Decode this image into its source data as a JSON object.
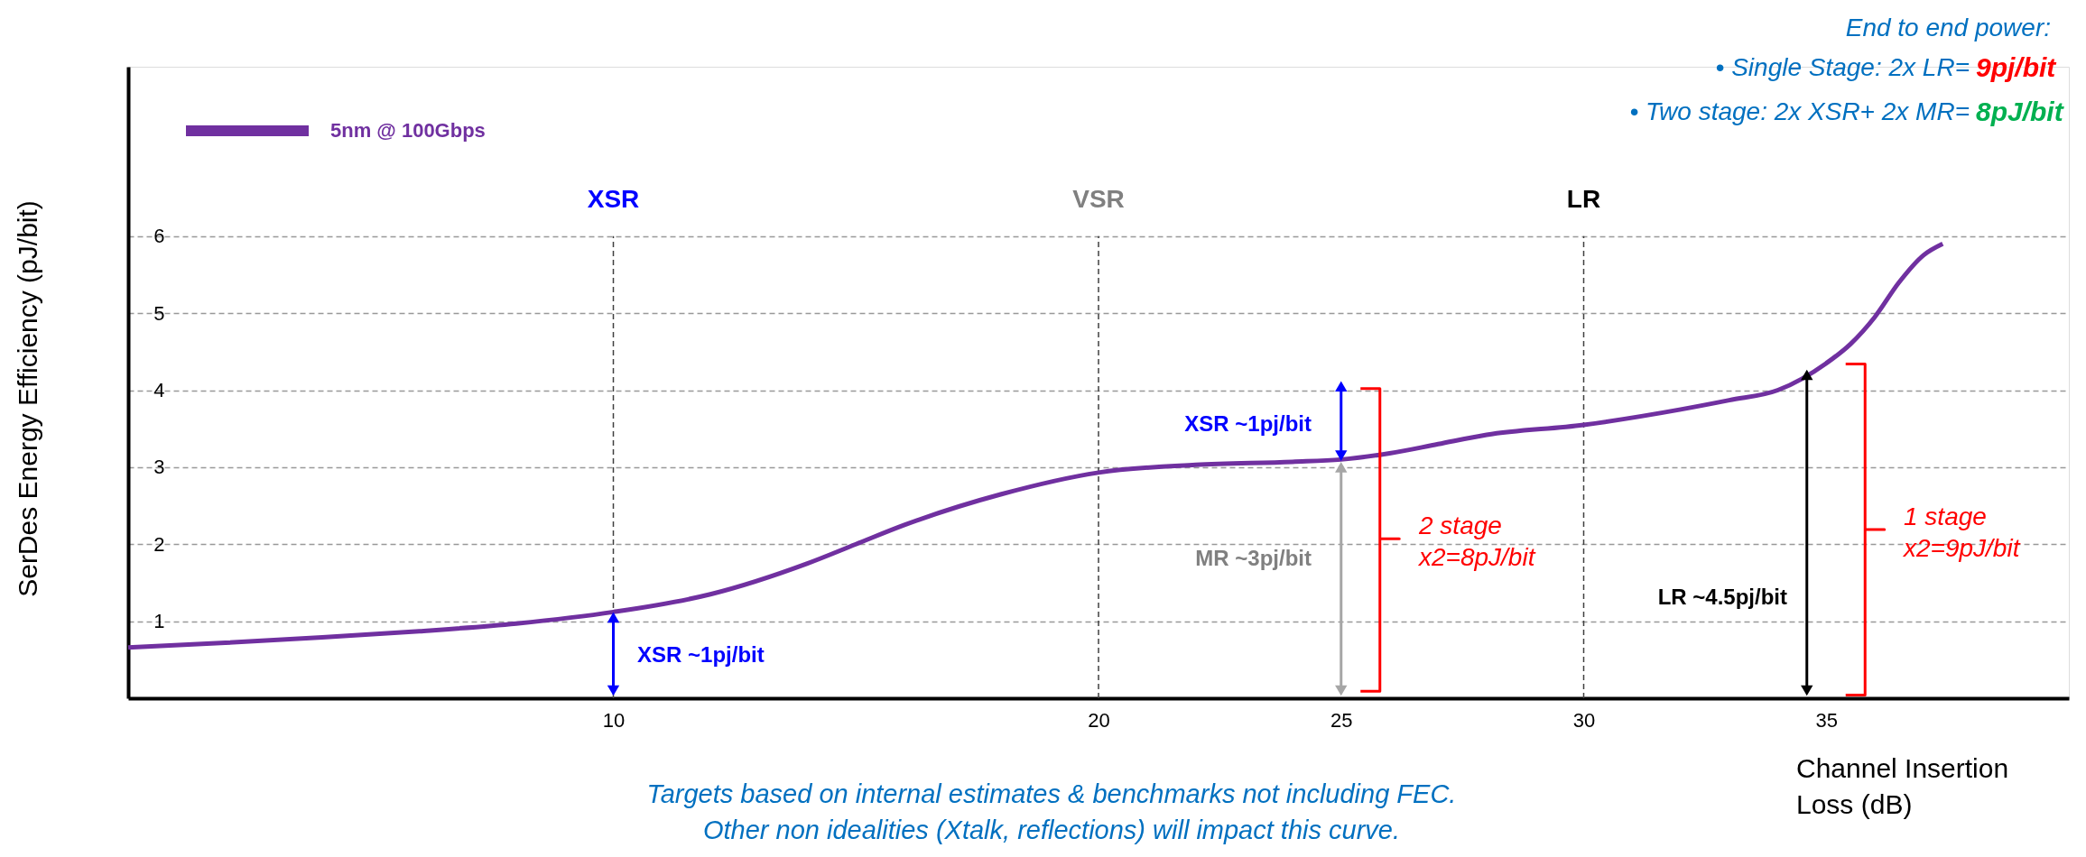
{
  "chart_data": {
    "type": "line",
    "ylabel": "SerDes Energy Efficiency  (pJ/bit)",
    "xlabel": "Channel Insertion\nLoss (dB)",
    "xlim": [
      0,
      40
    ],
    "ylim": [
      0,
      8.2
    ],
    "xticks": [
      10,
      20,
      25,
      30,
      35
    ],
    "yticks": [
      1,
      2,
      3,
      4,
      5,
      6
    ],
    "grid": "y",
    "legend": "top left",
    "series": [
      {
        "name": "5nm @ 100Gbps",
        "color": "#7030a0",
        "x": [
          0,
          2,
          4,
          6,
          8,
          10,
          12,
          14,
          15,
          16,
          18,
          20,
          22,
          24,
          25,
          26,
          27,
          28,
          30,
          32,
          33,
          34,
          35,
          35.5,
          36,
          36.5,
          37,
          37.4
        ],
        "values": [
          0.66,
          0.72,
          0.79,
          0.87,
          0.97,
          1.12,
          1.35,
          1.75,
          2.0,
          2.25,
          2.65,
          2.93,
          3.03,
          3.07,
          3.1,
          3.18,
          3.3,
          3.42,
          3.55,
          3.75,
          3.87,
          4.0,
          4.35,
          4.6,
          4.95,
          5.4,
          5.75,
          5.9
        ]
      },
      {
        "type": "line",
        "marker": "triangle",
        "color": "#0000ff",
        "x": [
          10,
          10
        ],
        "values": [
          0.1,
          1.05
        ]
      },
      {
        "type": "line",
        "marker": "triangle",
        "color": "#a6a6a6",
        "x": [
          25,
          25
        ],
        "values": [
          0.1,
          3.0
        ]
      },
      {
        "type": "line",
        "marker": "triangle",
        "color": "#0000ff",
        "x": [
          25,
          25
        ],
        "values": [
          3.15,
          4.05
        ]
      },
      {
        "type": "line",
        "marker": "triangle",
        "color": "#000000",
        "x": [
          34.6,
          34.6
        ],
        "values": [
          0.1,
          4.2
        ]
      },
      {
        "type": "line",
        "color": "#ff0000",
        "x": [
          25.4,
          25.8,
          25.8,
          26.2,
          25.8,
          25.8,
          25.4
        ],
        "values": [
          4.02,
          4.02,
          2.07,
          2.07,
          2.07,
          0.09,
          0.09
        ]
      },
      {
        "type": "line",
        "color": "#ff0000",
        "x": [
          35.4,
          35.8,
          35.8,
          36.2,
          35.8,
          35.8,
          35.4
        ],
        "values": [
          4.34,
          4.34,
          2.19,
          2.19,
          2.19,
          0.04,
          0.04
        ]
      }
    ],
    "ref_lines": [
      {
        "axis": "x",
        "value": 10,
        "label": "XSR",
        "color": "#404040",
        "line_style": "dashed"
      },
      {
        "axis": "x",
        "value": 20,
        "label": "VSR",
        "color": "#404040",
        "line_style": "dashed"
      },
      {
        "axis": "x",
        "value": 30,
        "label": "LR",
        "color": "#404040",
        "line_style": "dashed"
      }
    ],
    "annotations": [
      "XSR ~1pj/bit",
      "XSR ~1pj/bit",
      "MR ~3pj/bit",
      "LR ~4.5pj/bit",
      "2 stage\nx2=8pJ/bit",
      "1 stage\nx2=9pJ/bit",
      "End to end power:",
      "•  Single Stage: 2x LR= ",
      "9pj/bit",
      "•  Two stage: 2x XSR+ 2x MR= ",
      "8pJ/bit",
      "Targets based on internal estimates & benchmarks not including FEC.",
      "Other non idealities (Xtalk, reflections) will impact this curve."
    ]
  }
}
